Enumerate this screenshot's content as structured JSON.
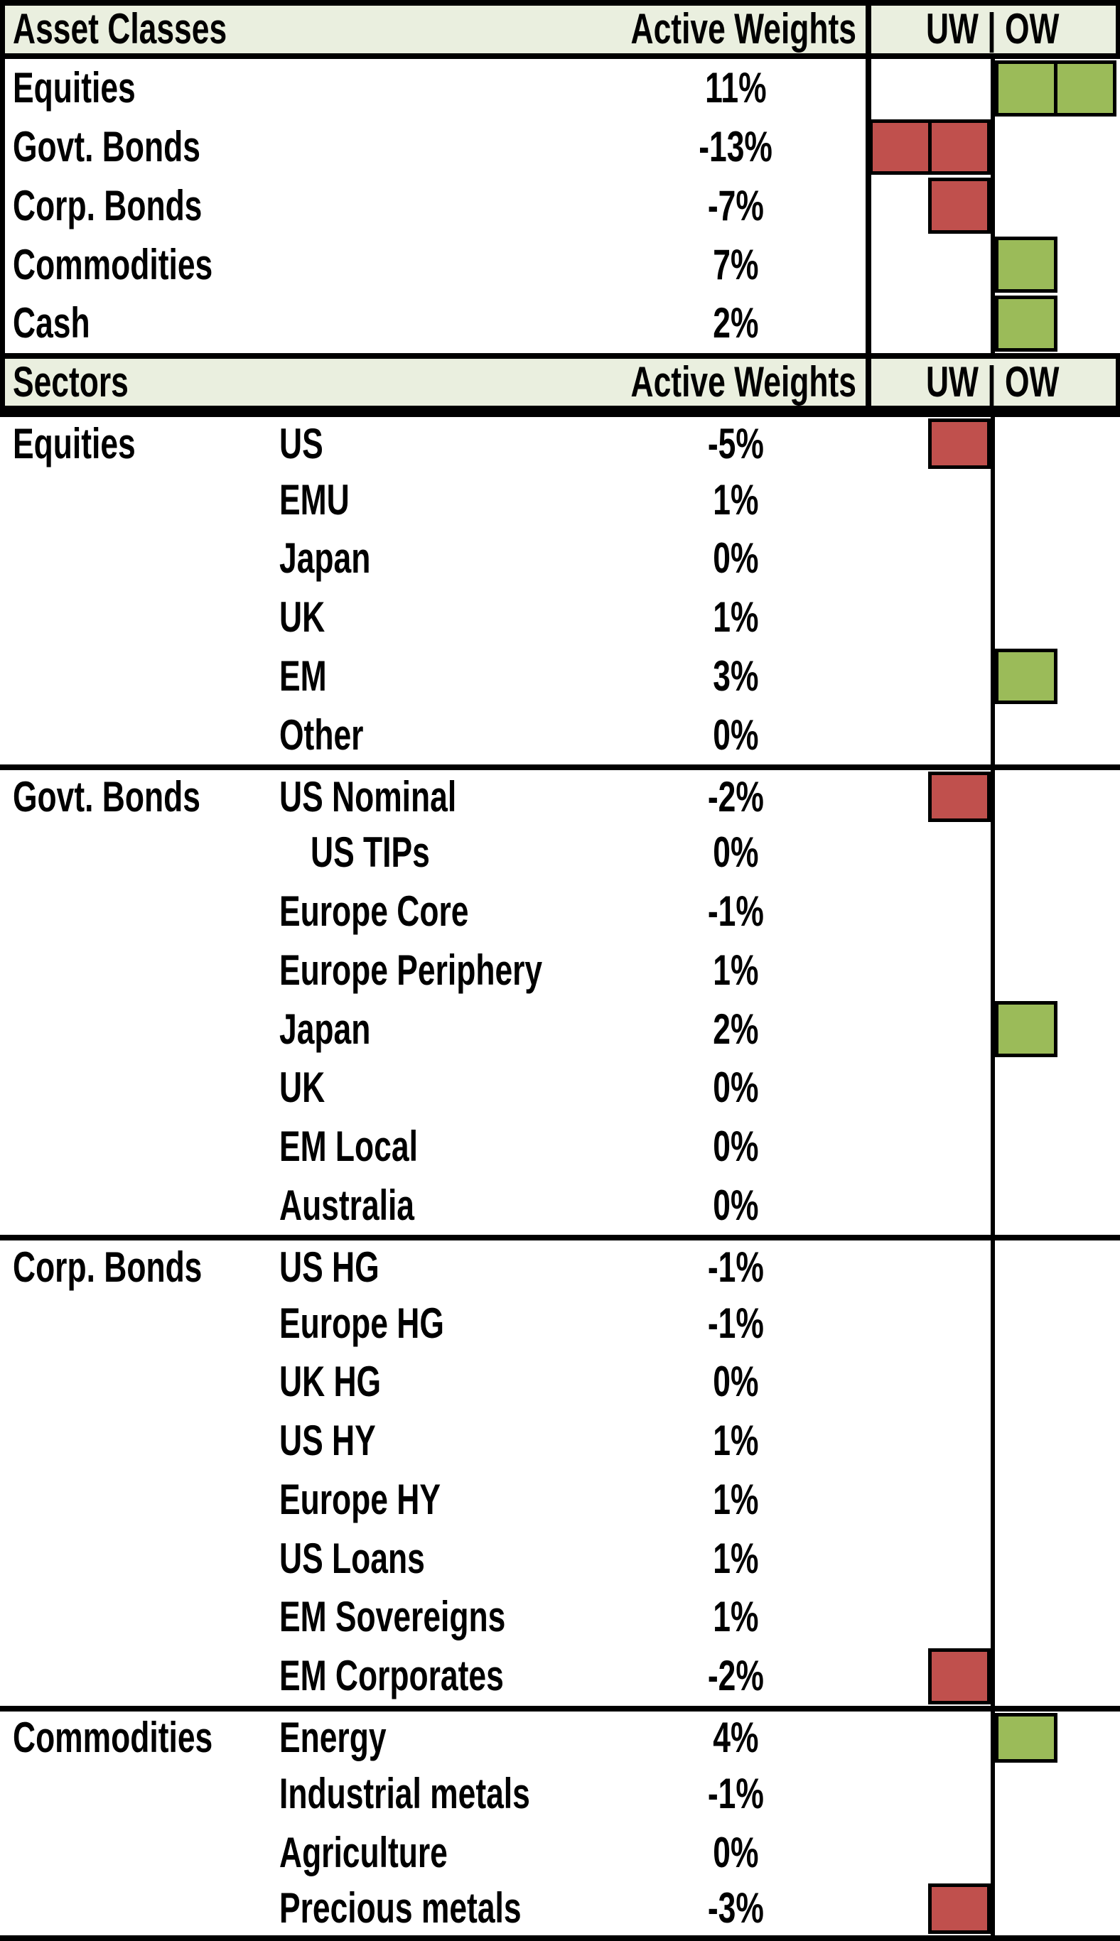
{
  "colors": {
    "overweight_green": "#9bbb59",
    "underweight_red": "#c0504d",
    "header_bg": "#eaefdf",
    "line_black": "#000000"
  },
  "headers": {
    "asset": {
      "col1": "Asset Classes",
      "col2": "Active Weights",
      "col3": "UW | OW"
    },
    "sector": {
      "col1": "Sectors",
      "col2": "Active Weights",
      "col3": "UW | OW"
    }
  },
  "asset_rows": [
    {
      "label": "Equities",
      "value": "11%",
      "bar": {
        "side": "ow",
        "units": 2,
        "color": "green"
      }
    },
    {
      "label": "Govt. Bonds",
      "value": "-13%",
      "bar": {
        "side": "uw",
        "units": 2,
        "color": "red"
      }
    },
    {
      "label": "Corp. Bonds",
      "value": "-7%",
      "bar": {
        "side": "uw",
        "units": 1,
        "color": "red"
      }
    },
    {
      "label": "Commodities",
      "value": "7%",
      "bar": {
        "side": "ow",
        "units": 1,
        "color": "green"
      }
    },
    {
      "label": "Cash",
      "value": "2%",
      "bar": {
        "side": "ow",
        "units": 1,
        "color": "green"
      }
    }
  ],
  "sector_rows": [
    {
      "group": "Equities",
      "label": "US",
      "value": "-5%",
      "bar": {
        "side": "uw",
        "units": 1,
        "color": "red"
      },
      "section_start": true
    },
    {
      "label": "EMU",
      "value": "1%"
    },
    {
      "label": "Japan",
      "value": "0%"
    },
    {
      "label": "UK",
      "value": "1%"
    },
    {
      "label": "EM",
      "value": "3%",
      "bar": {
        "side": "ow",
        "units": 1,
        "color": "green"
      }
    },
    {
      "label": "Other",
      "value": "0%"
    },
    {
      "group": "Govt. Bonds",
      "label": "US Nominal",
      "value": "-2%",
      "bar": {
        "side": "uw",
        "units": 1,
        "color": "red"
      },
      "section_start": true
    },
    {
      "label": "US TIPs",
      "value": "0%",
      "indent": true
    },
    {
      "label": "Europe Core",
      "value": "-1%"
    },
    {
      "label": "Europe Periphery",
      "value": "1%"
    },
    {
      "label": "Japan",
      "value": "2%",
      "bar": {
        "side": "ow",
        "units": 1,
        "color": "green"
      }
    },
    {
      "label": "UK",
      "value": "0%"
    },
    {
      "label": "EM Local",
      "value": "0%"
    },
    {
      "label": "Australia",
      "value": "0%"
    },
    {
      "group": "Corp. Bonds",
      "label": "US HG",
      "value": "-1%",
      "section_start": true
    },
    {
      "label": "Europe HG",
      "value": "-1%"
    },
    {
      "label": "UK HG",
      "value": "0%"
    },
    {
      "label": "US HY",
      "value": "1%"
    },
    {
      "label": "Europe HY",
      "value": "1%"
    },
    {
      "label": "US Loans",
      "value": "1%"
    },
    {
      "label": "EM Sovereigns",
      "value": "1%"
    },
    {
      "label": "EM Corporates",
      "value": "-2%",
      "bar": {
        "side": "uw",
        "units": 1,
        "color": "red"
      }
    },
    {
      "group": "Commodities",
      "label": "Energy",
      "value": "4%",
      "bar": {
        "side": "ow",
        "units": 1,
        "color": "green"
      },
      "section_start": true
    },
    {
      "label": "Industrial metals",
      "value": "-1%"
    },
    {
      "label": "Agriculture",
      "value": "0%"
    },
    {
      "label": "Precious metals",
      "value": "-3%",
      "bar": {
        "side": "uw",
        "units": 1,
        "color": "red"
      }
    }
  ],
  "chart_data": {
    "type": "table",
    "title": "",
    "legend": "UW = underweight (red squares left of center line), OW = overweight (green squares right of center line); one square per ~5pp, two squares for >10pp",
    "sections": [
      {
        "name": "Asset Classes",
        "columns": [
          "Asset Classes",
          "Active Weights",
          "UW | OW"
        ],
        "categories": [
          "Equities",
          "Govt. Bonds",
          "Corp. Bonds",
          "Commodities",
          "Cash"
        ],
        "values_pct": [
          11,
          -13,
          -7,
          7,
          2
        ],
        "bar_squares": [
          2,
          -2,
          -1,
          1,
          1
        ]
      },
      {
        "name": "Sectors",
        "columns": [
          "Sectors",
          "Active Weights",
          "UW | OW"
        ],
        "groups": [
          {
            "group": "Equities",
            "categories": [
              "US",
              "EMU",
              "Japan",
              "UK",
              "EM",
              "Other"
            ],
            "values_pct": [
              -5,
              1,
              0,
              1,
              3,
              0
            ],
            "bar_squares": [
              -1,
              0,
              0,
              0,
              1,
              0
            ]
          },
          {
            "group": "Govt. Bonds",
            "categories": [
              "US Nominal",
              "US TIPs",
              "Europe Core",
              "Europe Periphery",
              "Japan",
              "UK",
              "EM Local",
              "Australia"
            ],
            "values_pct": [
              -2,
              0,
              -1,
              1,
              2,
              0,
              0,
              0
            ],
            "bar_squares": [
              -1,
              0,
              0,
              0,
              1,
              0,
              0,
              0
            ]
          },
          {
            "group": "Corp. Bonds",
            "categories": [
              "US HG",
              "Europe HG",
              "UK HG",
              "US HY",
              "Europe HY",
              "US Loans",
              "EM Sovereigns",
              "EM Corporates"
            ],
            "values_pct": [
              -1,
              -1,
              0,
              1,
              1,
              1,
              1,
              -2
            ],
            "bar_squares": [
              0,
              0,
              0,
              0,
              0,
              0,
              0,
              -1
            ]
          },
          {
            "group": "Commodities",
            "categories": [
              "Energy",
              "Industrial metals",
              "Agriculture",
              "Precious metals"
            ],
            "values_pct": [
              4,
              -1,
              0,
              -3
            ],
            "bar_squares": [
              1,
              0,
              0,
              -1
            ]
          }
        ]
      }
    ]
  }
}
